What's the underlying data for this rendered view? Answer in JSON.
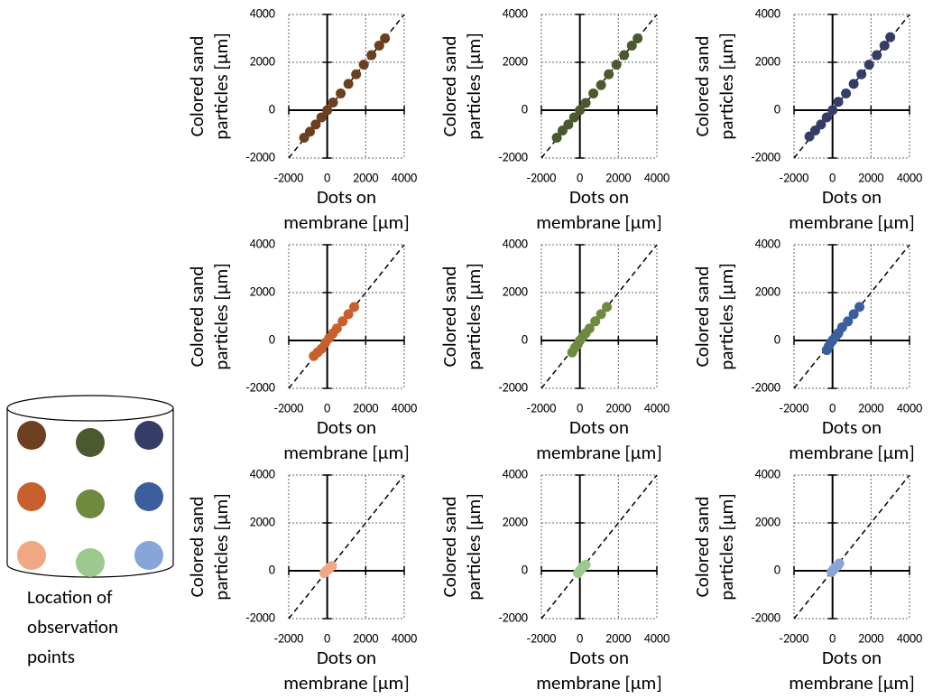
{
  "chart_data": [
    {
      "type": "scatter",
      "xlabel": [
        "Dots on",
        "membrane [µm]"
      ],
      "ylabel": [
        "Colored sand",
        "particles [µm]"
      ],
      "xlim": [
        -2000,
        4000
      ],
      "ylim": [
        -2000,
        4000
      ],
      "xticks": [
        -2000,
        0,
        2000,
        4000
      ],
      "yticks": [
        -2000,
        0,
        2000,
        4000
      ],
      "grid": true,
      "series": [
        {
          "color": "#6b3f1f",
          "x": [
            -1200,
            -900,
            -600,
            -300,
            0,
            300,
            700,
            1100,
            1500,
            1900,
            2300,
            2700,
            3000
          ],
          "y": [
            -1150,
            -900,
            -600,
            -300,
            0,
            320,
            700,
            1100,
            1500,
            1900,
            2300,
            2700,
            3000
          ]
        }
      ]
    },
    {
      "type": "scatter",
      "xlabel": [
        "Dots on",
        "membrane [µm]"
      ],
      "ylabel": [
        "Colored sand",
        "particles [µm]"
      ],
      "xlim": [
        -2000,
        4000
      ],
      "ylim": [
        -2000,
        4000
      ],
      "xticks": [
        -2000,
        0,
        2000,
        4000
      ],
      "yticks": [
        -2000,
        0,
        2000,
        4000
      ],
      "grid": true,
      "series": [
        {
          "color": "#4b5a2e",
          "x": [
            -1200,
            -900,
            -600,
            -300,
            0,
            300,
            700,
            1100,
            1500,
            1900,
            2300,
            2700,
            3000
          ],
          "y": [
            -1150,
            -850,
            -600,
            -300,
            0,
            300,
            700,
            1050,
            1500,
            1900,
            2300,
            2700,
            3000
          ]
        }
      ]
    },
    {
      "type": "scatter",
      "xlabel": [
        "Dots on",
        "membrane [µm]"
      ],
      "ylabel": [
        "Colored sand",
        "particles [µm]"
      ],
      "xlim": [
        -2000,
        4000
      ],
      "ylim": [
        -2000,
        4000
      ],
      "xticks": [
        -2000,
        0,
        2000,
        4000
      ],
      "yticks": [
        -2000,
        0,
        2000,
        4000
      ],
      "grid": true,
      "series": [
        {
          "color": "#353d66",
          "x": [
            -1200,
            -900,
            -600,
            -300,
            0,
            300,
            700,
            1100,
            1500,
            1900,
            2300,
            2700,
            3000
          ],
          "y": [
            -1100,
            -850,
            -600,
            -300,
            0,
            350,
            700,
            1100,
            1500,
            1900,
            2300,
            2700,
            3050
          ]
        }
      ]
    },
    {
      "type": "scatter",
      "xlabel": [
        "Dots on",
        "membrane [µm]"
      ],
      "ylabel": [
        "Colored sand",
        "particles [µm]"
      ],
      "xlim": [
        -2000,
        4000
      ],
      "ylim": [
        -2000,
        4000
      ],
      "xticks": [
        -2000,
        0,
        2000,
        4000
      ],
      "yticks": [
        -2000,
        0,
        2000,
        4000
      ],
      "grid": true,
      "series": [
        {
          "color": "#c8602e",
          "x": [
            -700,
            -500,
            -300,
            -100,
            100,
            300,
            500,
            800,
            1100,
            1400
          ],
          "y": [
            -650,
            -500,
            -350,
            -100,
            100,
            300,
            500,
            800,
            1100,
            1400
          ]
        }
      ]
    },
    {
      "type": "scatter",
      "xlabel": [
        "Dots on",
        "membrane [µm]"
      ],
      "ylabel": [
        "Colored sand",
        "particles [µm]"
      ],
      "xlim": [
        -2000,
        4000
      ],
      "ylim": [
        -2000,
        4000
      ],
      "xticks": [
        -2000,
        0,
        2000,
        4000
      ],
      "yticks": [
        -2000,
        0,
        2000,
        4000
      ],
      "grid": true,
      "series": [
        {
          "color": "#6e8a3e",
          "x": [
            -400,
            -250,
            -100,
            0,
            150,
            300,
            500,
            800,
            1100,
            1400
          ],
          "y": [
            -500,
            -300,
            -150,
            0,
            150,
            300,
            500,
            800,
            1100,
            1400
          ]
        }
      ]
    },
    {
      "type": "scatter",
      "xlabel": [
        "Dots on",
        "membrane [µm]"
      ],
      "ylabel": [
        "Colored sand",
        "particles [µm]"
      ],
      "xlim": [
        -2000,
        4000
      ],
      "ylim": [
        -2000,
        4000
      ],
      "xticks": [
        -2000,
        0,
        2000,
        4000
      ],
      "yticks": [
        -2000,
        0,
        2000,
        4000
      ],
      "grid": true,
      "series": [
        {
          "color": "#3a5f9c",
          "x": [
            -300,
            -200,
            -100,
            0,
            150,
            300,
            500,
            800,
            1100,
            1400
          ],
          "y": [
            -400,
            -250,
            -100,
            0,
            150,
            300,
            550,
            800,
            1100,
            1400
          ]
        }
      ]
    },
    {
      "type": "scatter",
      "xlabel": [
        "Dots on",
        "membrane [µm]"
      ],
      "ylabel": [
        "Colored sand",
        "particles [µm]"
      ],
      "xlim": [
        -2000,
        4000
      ],
      "ylim": [
        -2000,
        4000
      ],
      "xticks": [
        -2000,
        0,
        2000,
        4000
      ],
      "yticks": [
        -2000,
        0,
        2000,
        4000
      ],
      "grid": true,
      "series": [
        {
          "color": "#f0a884",
          "x": [
            -150,
            -50,
            50,
            150,
            250
          ],
          "y": [
            -100,
            0,
            50,
            150,
            200
          ]
        }
      ]
    },
    {
      "type": "scatter",
      "xlabel": [
        "Dots on",
        "membrane [µm]"
      ],
      "ylabel": [
        "Colored sand",
        "particles [µm]"
      ],
      "xlim": [
        -2000,
        4000
      ],
      "ylim": [
        -2000,
        4000
      ],
      "xticks": [
        -2000,
        0,
        2000,
        4000
      ],
      "yticks": [
        -2000,
        0,
        2000,
        4000
      ],
      "grid": true,
      "series": [
        {
          "color": "#9cc98e",
          "x": [
            -100,
            0,
            100,
            200,
            300
          ],
          "y": [
            -100,
            0,
            100,
            200,
            250
          ]
        }
      ]
    },
    {
      "type": "scatter",
      "xlabel": [
        "Dots on",
        "membrane [µm]"
      ],
      "ylabel": [
        "Colored sand",
        "particles [µm]"
      ],
      "xlim": [
        -2000,
        4000
      ],
      "ylim": [
        -2000,
        4000
      ],
      "xticks": [
        -2000,
        0,
        2000,
        4000
      ],
      "yticks": [
        -2000,
        0,
        2000,
        4000
      ],
      "grid": true,
      "series": [
        {
          "color": "#88a4d8",
          "x": [
            -50,
            50,
            150,
            250,
            350
          ],
          "y": [
            -50,
            50,
            150,
            200,
            300
          ]
        }
      ]
    }
  ],
  "diagram": {
    "caption": [
      "Location of",
      "observation",
      "points"
    ],
    "point_colors": [
      "#6b3f1f",
      "#4b5a2e",
      "#353d66",
      "#c8602e",
      "#6e8a3e",
      "#3a5f9c",
      "#f0a884",
      "#9cc98e",
      "#88a4d8"
    ]
  }
}
